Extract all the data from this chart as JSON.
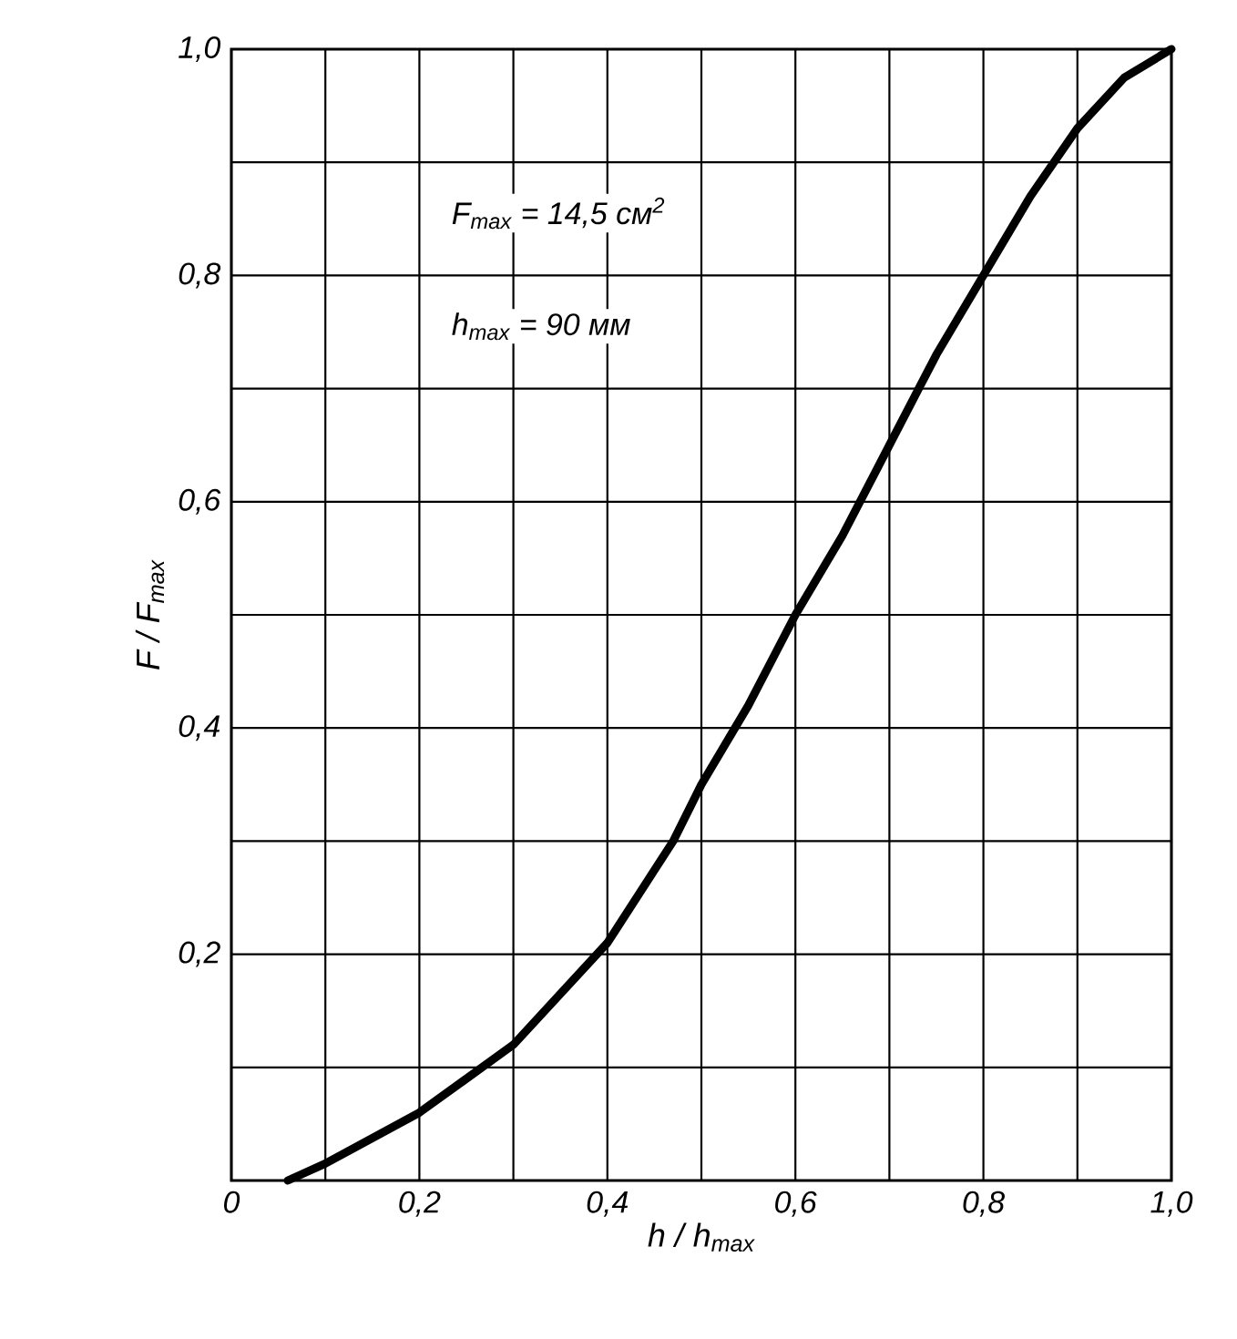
{
  "chart_data": {
    "type": "line",
    "xlabel": "h / h$_{max}$",
    "ylabel": "F / F$_{max}$",
    "annotations": [
      "F$_{max}$ = 14,5 см$^{2}$",
      "h$_{max}$ = 90 мм"
    ],
    "x": [
      0.06,
      0.1,
      0.2,
      0.3,
      0.4,
      0.47,
      0.5,
      0.55,
      0.6,
      0.65,
      0.7,
      0.75,
      0.8,
      0.85,
      0.9,
      0.95,
      1.0
    ],
    "series": [
      {
        "color": "#000000",
        "values": [
          0,
          0.015,
          0.06,
          0.12,
          0.21,
          0.3,
          0.35,
          0.42,
          0.5,
          0.57,
          0.65,
          0.73,
          0.8,
          0.87,
          0.93,
          0.975,
          1.0
        ]
      }
    ],
    "xlim": [
      0,
      1.0
    ],
    "ylim": [
      0,
      1.0
    ],
    "xticks": [
      "0",
      {
        "value": 0.1,
        "label": null
      },
      {
        "value": 0.2,
        "label": "0,2"
      },
      {
        "value": 0.3,
        "label": null
      },
      {
        "value": 0.4,
        "label": "0,4"
      },
      {
        "value": 0.5,
        "label": null
      },
      {
        "value": 0.6,
        "label": "0,6"
      },
      {
        "value": 0.7,
        "label": null
      },
      {
        "value": 0.8,
        "label": "0,8"
      },
      {
        "value": 0.9,
        "label": null
      },
      {
        "value": 1.0,
        "label": "1,0"
      }
    ],
    "yticks": [
      {
        "value": 0.1,
        "label": null
      },
      {
        "value": 0.2,
        "label": "0,2"
      },
      {
        "value": 0.3,
        "label": null
      },
      {
        "value": 0.4,
        "label": "0,4"
      },
      {
        "value": 0.5,
        "label": null
      },
      {
        "value": 0.6,
        "label": "0,6"
      },
      {
        "value": 0.7,
        "label": null
      },
      {
        "value": 0.8,
        "label": "0,8"
      },
      {
        "value": 0.9,
        "label": null
      },
      {
        "value": 1.0,
        "label": "1,0"
      }
    ],
    "grid": true,
    "marker": "none",
    "line_style": "solid"
  }
}
